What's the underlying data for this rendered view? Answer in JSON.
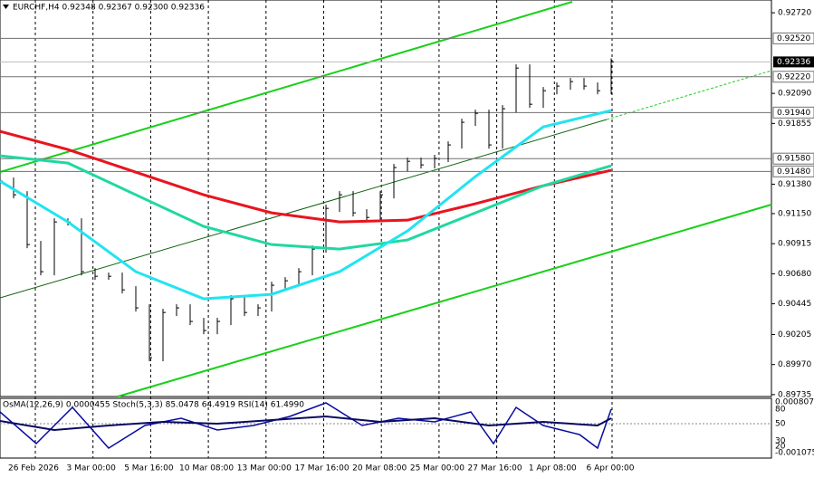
{
  "header": "EURCHF,H4  0.92348 0.92367 0.92300 0.92336",
  "indicator_header": "OsMA(12,26,9) 0.0000455 Stoch(5,3,3) 85.0478 64.4919 RSI(14) 61.4990",
  "chart_data": {
    "type": "line",
    "ylim": [
      0.8972,
      0.9282
    ],
    "yticks": [
      {
        "value": 0.9272,
        "label": "0.92720"
      },
      {
        "value": 0.9209,
        "label": "0.92090"
      },
      {
        "value": 0.91855,
        "label": "0.91855"
      },
      {
        "value": 0.9138,
        "label": "0.91380"
      },
      {
        "value": 0.9115,
        "label": "0.91150"
      },
      {
        "value": 0.90915,
        "label": "0.90915"
      },
      {
        "value": 0.9068,
        "label": "0.90680"
      },
      {
        "value": 0.90445,
        "label": "0.90445"
      },
      {
        "value": 0.90205,
        "label": "0.90205"
      },
      {
        "value": 0.8997,
        "label": "0.89970"
      },
      {
        "value": 0.89735,
        "label": "0.89735"
      }
    ],
    "levels": [
      {
        "value": 0.9252,
        "label": "0.92520"
      },
      {
        "value": 0.9222,
        "label": "0.92220"
      },
      {
        "value": 0.9194,
        "label": "0.91940"
      },
      {
        "value": 0.9158,
        "label": "0.91580"
      },
      {
        "value": 0.9148,
        "label": "0.91480"
      }
    ],
    "current_price": {
      "value": 0.92336,
      "label": "0.92336"
    },
    "time_labels": [
      "26 Feb 2026",
      "3 Mar 00:00",
      "5 Mar 16:00",
      "10 Mar 08:00",
      "13 Mar 00:00",
      "17 Mar 16:00",
      "20 Mar 08:00",
      "25 Mar 00:00",
      "27 Mar 16:00",
      "1 Apr 08:00",
      "6 Apr 00:00"
    ],
    "close": [
      0.91404,
      0.91297,
      0.90908,
      0.90696,
      0.91085,
      0.91085,
      0.90696,
      0.9066,
      0.9066,
      0.90554,
      0.90413,
      0.90024,
      0.90377,
      0.90413,
      0.90307,
      0.90236,
      0.90307,
      0.90484,
      0.90377,
      0.90413,
      0.9059,
      0.90625,
      0.90696,
      0.90873,
      0.91191,
      0.91297,
      0.91156,
      0.9112,
      0.91297,
      0.9151,
      0.91559,
      0.91531,
      0.91581,
      0.91687,
      0.91864,
      0.91934,
      0.91687,
      0.9197,
      0.92288,
      0.92005,
      0.92111,
      0.92147,
      0.92182,
      0.92147,
      0.92111,
      0.92336
    ],
    "series": [
      {
        "color": "#e8141e",
        "values": [
          0.91793,
          0.91651,
          0.91474,
          0.91297,
          0.91156,
          0.91085,
          0.91099,
          0.91227,
          0.91368,
          0.91489
        ]
      },
      {
        "color": "#20d8a0",
        "values": [
          0.91602,
          0.91545,
          0.91297,
          0.9105,
          0.90908,
          0.90873,
          0.90944,
          0.91156,
          0.91368,
          0.91524
        ]
      },
      {
        "color": "#22e4f0",
        "values": [
          0.91404,
          0.91085,
          0.90696,
          0.90484,
          0.90519,
          0.90696,
          0.91014,
          0.91439,
          0.91828,
          0.91956
        ]
      }
    ],
    "indicator_ticks": [
      "0.0008072",
      "80",
      "50",
      "30",
      "20",
      "-0.001075"
    ]
  }
}
